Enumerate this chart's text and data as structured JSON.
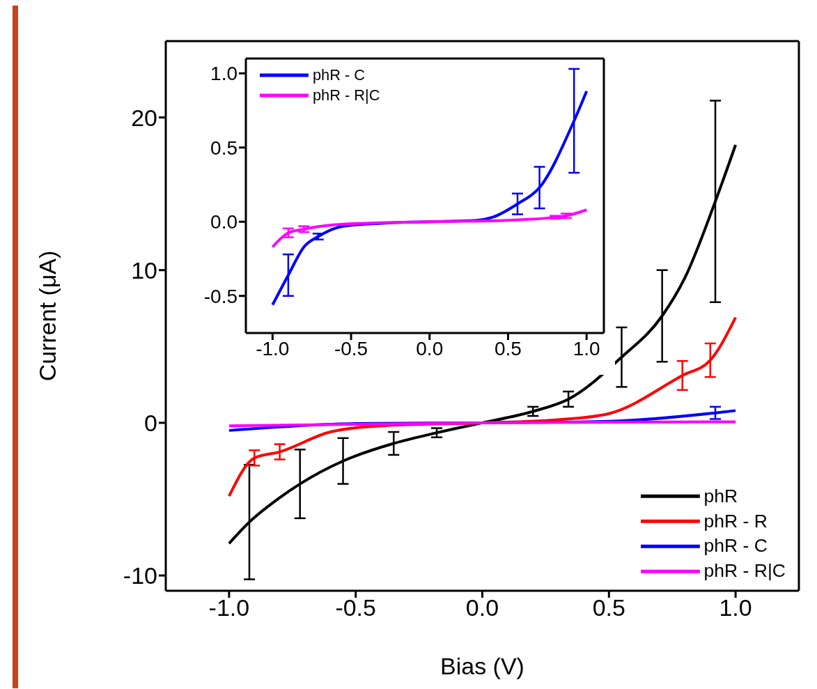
{
  "chart_data": [
    {
      "type": "line",
      "xlabel": "Bias (V)",
      "ylabel": "Current (μA)",
      "xlim": [
        -1.25,
        1.25
      ],
      "xticks": [
        {
          "value": -1,
          "label": "-1.0"
        },
        {
          "value": -0.5,
          "label": "-0.5"
        },
        {
          "value": 0,
          "label": "0.0"
        },
        {
          "value": 0.5,
          "label": "0.5"
        },
        {
          "value": 1,
          "label": "1.0"
        }
      ],
      "ylim": [
        -11,
        25
      ],
      "yticks": [
        -10,
        0,
        10,
        20
      ],
      "grid": false,
      "legend": "bottom right",
      "marker": "none",
      "line_style": "solid",
      "series": [
        {
          "name": "phR",
          "color": "#000000",
          "x": [
            -1.0,
            -0.92,
            -0.8,
            -0.72,
            -0.55,
            -0.35,
            -0.18,
            0,
            0.2,
            0.34,
            0.55,
            0.71,
            0.8,
            0.92,
            1.0
          ],
          "values": [
            -7.9,
            -6.5,
            -4.9,
            -4.0,
            -2.5,
            -1.35,
            -0.65,
            0,
            0.75,
            1.55,
            4.3,
            7.0,
            9.5,
            14.5,
            18.2
          ],
          "errors": [
            null,
            3.75,
            null,
            2.25,
            1.5,
            0.75,
            0.3,
            null,
            0.3,
            0.5,
            1.95,
            3.0,
            null,
            6.6,
            null
          ]
        },
        {
          "name": "phR - R",
          "color": "#ff0000",
          "x": [
            -1.0,
            -0.9,
            -0.8,
            -0.6,
            -0.4,
            0,
            0.3,
            0.5,
            0.79,
            0.9,
            1.0
          ],
          "values": [
            -4.8,
            -2.3,
            -1.9,
            -0.6,
            -0.2,
            0,
            0.2,
            0.6,
            3.1,
            4.1,
            6.9
          ],
          "errors": [
            null,
            0.5,
            0.5,
            null,
            null,
            null,
            null,
            null,
            0.95,
            1.1,
            null
          ]
        },
        {
          "name": "phR - C",
          "color": "#0000ff",
          "x": [
            -1.0,
            -0.5,
            0,
            0.5,
            0.92,
            1.0
          ],
          "values": [
            -0.5,
            -0.05,
            0,
            0.1,
            0.65,
            0.8
          ],
          "errors": [
            null,
            null,
            null,
            null,
            0.4,
            null
          ]
        },
        {
          "name": "phR - R|C",
          "color": "#ff00ff",
          "x": [
            -1.0,
            0,
            1.0
          ],
          "values": [
            -0.2,
            0,
            0.07
          ]
        }
      ]
    },
    {
      "type": "line",
      "xlim": [
        -1.17,
        1.11
      ],
      "xticks": [
        {
          "value": -1,
          "label": "-1.0"
        },
        {
          "value": -0.5,
          "label": "-0.5"
        },
        {
          "value": 0,
          "label": "0.0"
        },
        {
          "value": 0.5,
          "label": "0.5"
        },
        {
          "value": 1,
          "label": "1.0"
        }
      ],
      "ylim": [
        -0.75,
        1.1
      ],
      "yticks": [
        -0.5,
        {
          "value": 0,
          "label": "0.0"
        },
        0.5,
        {
          "value": 1,
          "label": "1.0"
        }
      ],
      "grid": false,
      "legend": "top left",
      "marker": "none",
      "line_style": "solid",
      "series": [
        {
          "name": "phR - C",
          "color": "#0000ff",
          "x": [
            -1.0,
            -0.9,
            -0.8,
            -0.71,
            -0.55,
            -0.3,
            0,
            0.3,
            0.4,
            0.56,
            0.7,
            0.92,
            1.0
          ],
          "values": [
            -0.56,
            -0.36,
            -0.17,
            -0.1,
            -0.03,
            -0.01,
            0,
            0.01,
            0.03,
            0.12,
            0.23,
            0.68,
            0.88
          ],
          "errors": [
            null,
            0.14,
            null,
            0.02,
            null,
            null,
            null,
            null,
            null,
            0.07,
            0.14,
            0.35,
            null
          ]
        },
        {
          "name": "phR - R|C",
          "color": "#ff00ff",
          "x": [
            -1.0,
            -0.9,
            -0.8,
            -0.6,
            -0.4,
            0,
            0.5,
            0.8,
            0.87,
            1.0
          ],
          "values": [
            -0.17,
            -0.075,
            -0.05,
            -0.02,
            -0.01,
            0,
            0.01,
            0.03,
            0.04,
            0.08
          ],
          "errors": [
            null,
            0.03,
            0.02,
            null,
            null,
            null,
            null,
            0.01,
            0.015,
            null
          ]
        }
      ]
    }
  ]
}
